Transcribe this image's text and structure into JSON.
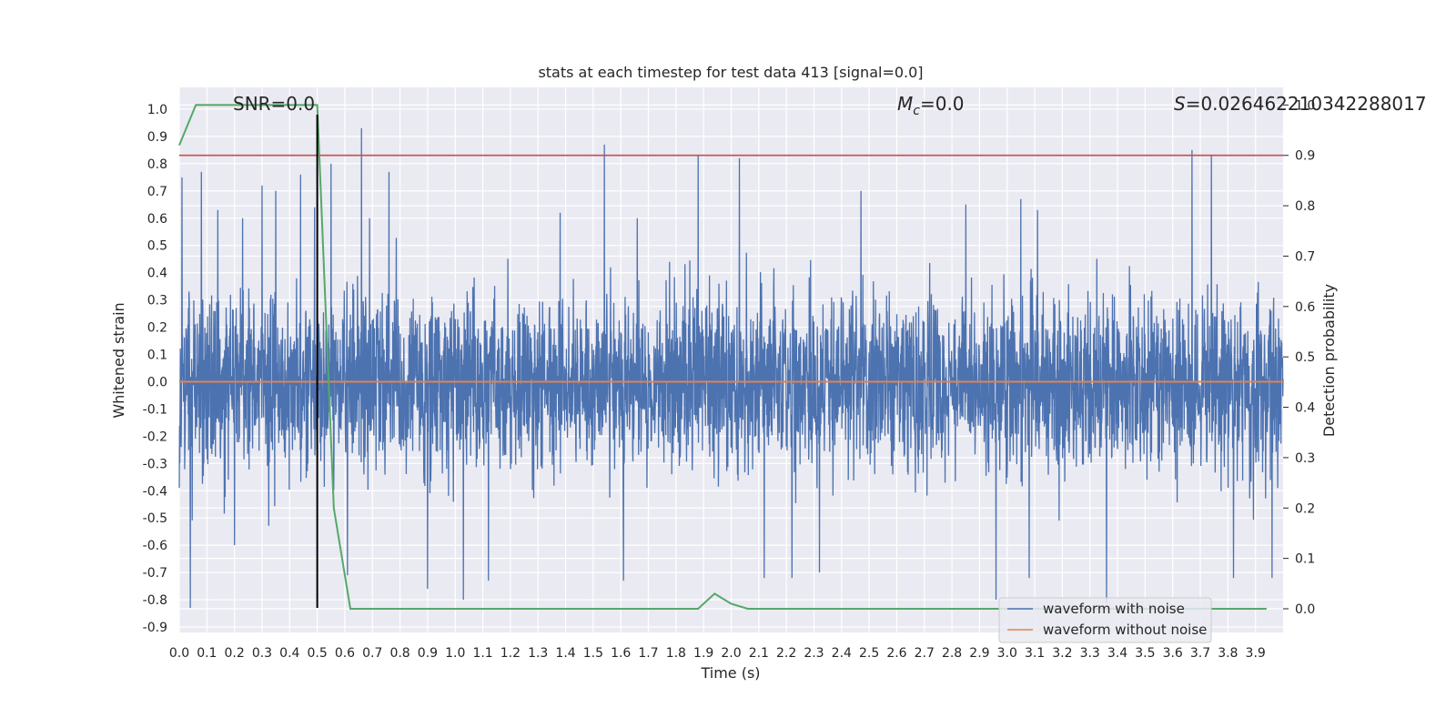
{
  "chart_data": {
    "type": "line",
    "title": "stats at each timestep for test data 413 [signal=0.0]",
    "xlabel": "Time (s)",
    "ylabel": "Whitened strain",
    "y2label": "Detection probability",
    "xlim": [
      0.0,
      4.0
    ],
    "ylim": [
      -0.92,
      1.08
    ],
    "y2lim": [
      -0.047,
      1.035
    ],
    "x_ticks": [
      "0.0",
      "0.1",
      "0.2",
      "0.3",
      "0.4",
      "0.5",
      "0.6",
      "0.7",
      "0.8",
      "0.9",
      "1.0",
      "1.1",
      "1.2",
      "1.3",
      "1.4",
      "1.5",
      "1.6",
      "1.7",
      "1.8",
      "1.9",
      "2.0",
      "2.1",
      "2.2",
      "2.3",
      "2.4",
      "2.5",
      "2.6",
      "2.7",
      "2.8",
      "2.9",
      "3.0",
      "3.1",
      "3.2",
      "3.3",
      "3.4",
      "3.5",
      "3.6",
      "3.7",
      "3.8",
      "3.9"
    ],
    "y_ticks": [
      "1.0",
      "0.9",
      "0.8",
      "0.7",
      "0.6",
      "0.5",
      "0.4",
      "0.3",
      "0.2",
      "0.1",
      "0.0",
      "-0.1",
      "-0.2",
      "-0.3",
      "-0.4",
      "-0.5",
      "-0.6",
      "-0.7",
      "-0.8",
      "-0.9"
    ],
    "y2_ticks": [
      "1.0",
      "0.9",
      "0.8",
      "0.7",
      "0.6",
      "0.5",
      "0.4",
      "0.3",
      "0.2",
      "0.1",
      "0.0"
    ],
    "grid": true,
    "legend_position": "bottom-right",
    "annotations": {
      "snr": "SNR=0.0",
      "mc": "=0.0",
      "mc_symbol": "M",
      "mc_sub": "c",
      "s": "=0.026462210342288017",
      "s_symbol": "S"
    },
    "series": [
      {
        "name": "waveform with noise",
        "color": "#4c72b0",
        "kind": "noise",
        "spikes": [
          {
            "x": 0.01,
            "y": 0.75
          },
          {
            "x": 0.04,
            "y": -0.83
          },
          {
            "x": 0.08,
            "y": -0.68
          },
          {
            "x": 0.08,
            "y": 0.77
          },
          {
            "x": 0.14,
            "y": 0.63
          },
          {
            "x": 0.2,
            "y": -0.6
          },
          {
            "x": 0.23,
            "y": 0.6
          },
          {
            "x": 0.3,
            "y": 0.72
          },
          {
            "x": 0.35,
            "y": 0.7
          },
          {
            "x": 0.44,
            "y": 0.76
          },
          {
            "x": 0.49,
            "y": 0.64
          },
          {
            "x": 0.5,
            "y": 0.99
          },
          {
            "x": 0.5,
            "y": -0.58
          },
          {
            "x": 0.55,
            "y": 0.8
          },
          {
            "x": 0.66,
            "y": 0.93
          },
          {
            "x": 0.61,
            "y": -0.71
          },
          {
            "x": 0.69,
            "y": 0.6
          },
          {
            "x": 0.76,
            "y": 0.77
          },
          {
            "x": 0.9,
            "y": -0.76
          },
          {
            "x": 1.03,
            "y": -0.8
          },
          {
            "x": 1.12,
            "y": -0.73
          },
          {
            "x": 1.38,
            "y": 0.62
          },
          {
            "x": 1.54,
            "y": 0.87
          },
          {
            "x": 1.61,
            "y": -0.73
          },
          {
            "x": 1.66,
            "y": 0.6
          },
          {
            "x": 1.88,
            "y": 0.83
          },
          {
            "x": 2.03,
            "y": 0.82
          },
          {
            "x": 2.12,
            "y": 0.75
          },
          {
            "x": 2.12,
            "y": -0.72
          },
          {
            "x": 2.22,
            "y": -0.72
          },
          {
            "x": 2.32,
            "y": -0.7
          },
          {
            "x": 2.47,
            "y": 0.7
          },
          {
            "x": 2.85,
            "y": 0.65
          },
          {
            "x": 2.96,
            "y": -0.8
          },
          {
            "x": 3.05,
            "y": 0.67
          },
          {
            "x": 3.08,
            "y": -0.72
          },
          {
            "x": 3.11,
            "y": 0.63
          },
          {
            "x": 3.36,
            "y": -0.81
          },
          {
            "x": 3.67,
            "y": 0.85
          },
          {
            "x": 3.74,
            "y": 0.83
          },
          {
            "x": 3.82,
            "y": -0.72
          },
          {
            "x": 3.96,
            "y": -0.72
          }
        ]
      },
      {
        "name": "waveform without noise",
        "color": "#dd8452",
        "kind": "flat",
        "value": 0.0
      },
      {
        "name": "",
        "color": "#55a868",
        "axis": "y2",
        "kind": "line",
        "x": [
          0.0,
          0.06,
          0.12,
          0.5,
          0.56,
          0.62,
          1.0,
          1.5,
          1.88,
          1.94,
          2.0,
          2.06,
          2.5,
          3.0,
          3.5,
          3.94
        ],
        "y": [
          0.92,
          1.0,
          1.0,
          1.0,
          0.2,
          0.0,
          0.0,
          0.0,
          0.0,
          0.03,
          0.01,
          0.0,
          0.0,
          0.0,
          0.0,
          0.0
        ]
      }
    ],
    "threshold": {
      "axis": "y2",
      "value": 0.9,
      "color": "#c44e52"
    },
    "vline": {
      "x": 0.5,
      "color": "#000000",
      "ymin": -0.83,
      "ymax": 0.98
    }
  }
}
